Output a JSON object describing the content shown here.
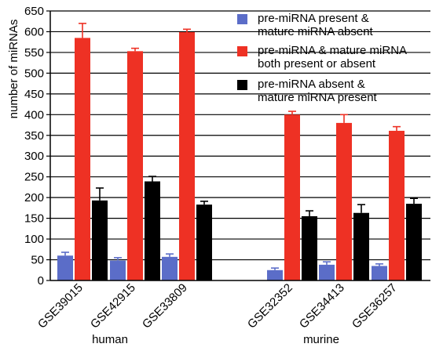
{
  "chart_data": {
    "type": "bar",
    "ylabel": "number of miRNAs",
    "ylim": [
      0,
      650
    ],
    "yticks": [
      0,
      50,
      100,
      150,
      200,
      250,
      300,
      350,
      400,
      450,
      500,
      550,
      600,
      650
    ],
    "grid": "horizontal",
    "legend_position": "top-right",
    "categories": [
      "GSE39015",
      "GSE42915",
      "GSE33809",
      "GSE32352",
      "GSE34413",
      "GSE36257"
    ],
    "groups": [
      {
        "label": "human",
        "categories": [
          "GSE39015",
          "GSE42915",
          "GSE33809"
        ]
      },
      {
        "label": "murine",
        "categories": [
          "GSE32352",
          "GSE34413",
          "GSE36257"
        ]
      }
    ],
    "series": [
      {
        "legend_lines": [
          "pre-miRNA present &",
          "mature miRNA absent"
        ],
        "color": "#5B6DC8",
        "error_color": "#5B6DC8",
        "values": [
          60,
          48,
          57,
          25,
          38,
          35
        ],
        "errors": [
          8,
          7,
          7,
          5,
          7,
          5
        ]
      },
      {
        "legend_lines": [
          "pre-miRNA & mature miRNA",
          "both present or absent"
        ],
        "color": "#EE3124",
        "error_color": "#EE3124",
        "values": [
          585,
          553,
          599,
          400,
          380,
          361
        ],
        "errors": [
          35,
          7,
          7,
          8,
          20,
          10
        ]
      },
      {
        "legend_lines": [
          "pre-miRNA absent &",
          "mature miRNA present"
        ],
        "color": "#000000",
        "error_color": "#000000",
        "values": [
          193,
          239,
          183,
          155,
          163,
          185
        ],
        "errors": [
          30,
          12,
          8,
          13,
          20,
          13
        ]
      }
    ]
  }
}
